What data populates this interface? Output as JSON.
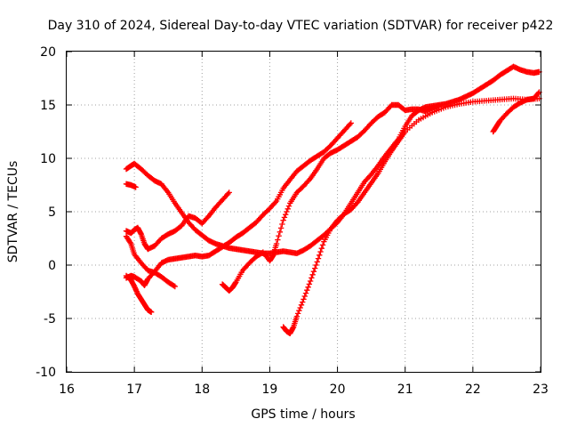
{
  "chart_data": {
    "type": "scatter",
    "title": "Day 310 of 2024, Sidereal Day-to-day VTEC variation (SDTVAR) for receiver p422",
    "xlabel": "GPS time / hours",
    "ylabel": "SDTVAR / TECUs",
    "xlim": [
      16,
      23
    ],
    "ylim": [
      -10,
      20
    ],
    "xticks": [
      "16",
      "17",
      "18",
      "19",
      "20",
      "21",
      "22",
      "23"
    ],
    "yticks": [
      "20",
      "15",
      "10",
      "5",
      "0",
      "-5",
      "-10"
    ],
    "grid": true,
    "marker": "plus",
    "color": "#ff0000",
    "series": [
      {
        "x": [
          16.88,
          16.95,
          17.0,
          17.1,
          17.2,
          17.3,
          17.4,
          17.5,
          17.6,
          17.7,
          17.8,
          17.9,
          18.0,
          18.1,
          18.2,
          18.3,
          18.4,
          18.5,
          18.6,
          18.7,
          18.8,
          18.9,
          19.0,
          19.1,
          19.2,
          19.3,
          19.4,
          19.5,
          19.6,
          19.7,
          19.8,
          19.9,
          20.0,
          20.1,
          20.2,
          20.3,
          20.4,
          20.5,
          20.6,
          20.7,
          20.8,
          20.9,
          21.0,
          21.1,
          21.2,
          21.3,
          21.4,
          21.5,
          21.6,
          21.7,
          21.8,
          21.9,
          22.0,
          22.1,
          22.2,
          22.3,
          22.4,
          22.5,
          22.6,
          22.7,
          22.8,
          22.9,
          22.98
        ],
        "y": [
          9.0,
          9.3,
          9.5,
          9.0,
          8.4,
          7.9,
          7.6,
          6.8,
          5.8,
          4.9,
          4.0,
          3.3,
          2.8,
          2.3,
          2.0,
          1.8,
          1.6,
          1.5,
          1.4,
          1.3,
          1.2,
          1.1,
          1.1,
          1.2,
          1.3,
          1.2,
          1.1,
          1.4,
          1.8,
          2.3,
          2.8,
          3.4,
          4.0,
          4.8,
          5.8,
          6.8,
          7.8,
          8.5,
          9.3,
          10.2,
          11.0,
          11.8,
          13.0,
          14.0,
          14.5,
          14.8,
          14.9,
          15.0,
          15.1,
          15.3,
          15.5,
          15.8,
          16.1,
          16.5,
          16.9,
          17.3,
          17.8,
          18.2,
          18.6,
          18.3,
          18.1,
          18.0,
          18.1
        ]
      },
      {
        "x": [
          16.88,
          16.95,
          17.0,
          17.1,
          17.15,
          17.2,
          17.3,
          17.4,
          17.5,
          17.6,
          17.7,
          17.8,
          17.9,
          18.0,
          18.1,
          18.2,
          18.3,
          18.4,
          18.5,
          18.6,
          18.7,
          18.8,
          18.9,
          19.0,
          19.1,
          19.2,
          19.3,
          19.4,
          19.5,
          19.6,
          19.7,
          19.8,
          19.9,
          20.0,
          20.1,
          20.2
        ],
        "y": [
          -1.2,
          -1.0,
          -1.1,
          -1.5,
          -1.9,
          -1.3,
          -0.6,
          0.2,
          0.5,
          0.6,
          0.7,
          0.8,
          0.9,
          0.8,
          0.9,
          1.3,
          1.7,
          2.1,
          2.6,
          3.0,
          3.5,
          4.0,
          4.7,
          5.3,
          6.0,
          7.2,
          8.0,
          8.8,
          9.3,
          9.8,
          10.2,
          10.6,
          11.2,
          11.9,
          12.6,
          13.3
        ]
      },
      {
        "x": [
          16.88,
          16.95,
          17.0,
          17.05,
          17.1,
          17.15,
          17.2,
          17.3,
          17.4,
          17.5,
          17.6,
          17.7,
          17.8,
          17.9,
          18.0,
          18.1,
          18.2,
          18.3,
          18.4
        ],
        "y": [
          3.2,
          3.0,
          3.3,
          3.5,
          2.9,
          2.0,
          1.5,
          1.8,
          2.5,
          2.9,
          3.2,
          3.7,
          4.6,
          4.4,
          3.9,
          4.6,
          5.4,
          6.1,
          6.8
        ]
      },
      {
        "x": [
          16.88,
          16.95,
          17.0,
          17.05,
          17.1,
          17.15,
          17.2,
          17.25
        ],
        "y": [
          -1.0,
          -1.4,
          -2.0,
          -2.7,
          -3.2,
          -3.7,
          -4.2,
          -4.4
        ]
      },
      {
        "x": [
          16.88,
          16.95,
          17.0,
          17.1,
          17.2,
          17.3,
          17.4,
          17.5,
          17.6
        ],
        "y": [
          2.7,
          2.0,
          1.0,
          0.2,
          -0.5,
          -0.7,
          -1.1,
          -1.6,
          -2.0
        ]
      },
      {
        "x": [
          16.88,
          16.95,
          17.02
        ],
        "y": [
          7.6,
          7.5,
          7.3
        ]
      },
      {
        "x": [
          18.3,
          18.35,
          18.4,
          18.45,
          18.5,
          18.6,
          18.7,
          18.8,
          18.9,
          19.0,
          19.05,
          19.1,
          19.2,
          19.3,
          19.4,
          19.5,
          19.6,
          19.7,
          19.8,
          19.9,
          20.0,
          20.1,
          20.2,
          20.3,
          20.4,
          20.5,
          20.6,
          20.7,
          20.8,
          20.9,
          21.0,
          21.1,
          21.2,
          21.3,
          21.4,
          21.5
        ],
        "y": [
          -1.8,
          -2.1,
          -2.4,
          -2.1,
          -1.6,
          -0.5,
          0.2,
          0.8,
          1.2,
          0.4,
          0.9,
          2.0,
          4.2,
          5.8,
          6.8,
          7.4,
          8.1,
          9.0,
          10.0,
          10.5,
          10.8,
          11.2,
          11.6,
          12.0,
          12.6,
          13.3,
          13.9,
          14.3,
          15.0,
          15.0,
          14.5,
          14.6,
          14.6,
          14.4,
          14.7,
          14.9
        ]
      },
      {
        "x": [
          19.2,
          19.25,
          19.3,
          19.35,
          19.4,
          19.5,
          19.6,
          19.7,
          19.8,
          19.9,
          20.0,
          20.1,
          20.2,
          20.3,
          20.4,
          20.5,
          20.6,
          20.7,
          20.8,
          20.9,
          21.0,
          21.2,
          21.4,
          21.6,
          21.8,
          22.0,
          22.2,
          22.4,
          22.6,
          22.8,
          22.98
        ],
        "y": [
          -5.8,
          -6.2,
          -6.4,
          -5.8,
          -4.8,
          -3.2,
          -1.5,
          0.3,
          2.2,
          3.4,
          4.2,
          4.8,
          5.2,
          5.9,
          6.8,
          7.7,
          8.6,
          9.7,
          10.7,
          11.6,
          12.5,
          13.6,
          14.3,
          14.8,
          15.1,
          15.3,
          15.4,
          15.5,
          15.6,
          15.5,
          15.6
        ]
      },
      {
        "x": [
          22.3,
          22.35,
          22.4,
          22.5,
          22.6,
          22.7,
          22.8,
          22.9,
          22.98
        ],
        "y": [
          12.5,
          13.0,
          13.5,
          14.2,
          14.8,
          15.2,
          15.5,
          15.6,
          16.2
        ]
      }
    ]
  }
}
